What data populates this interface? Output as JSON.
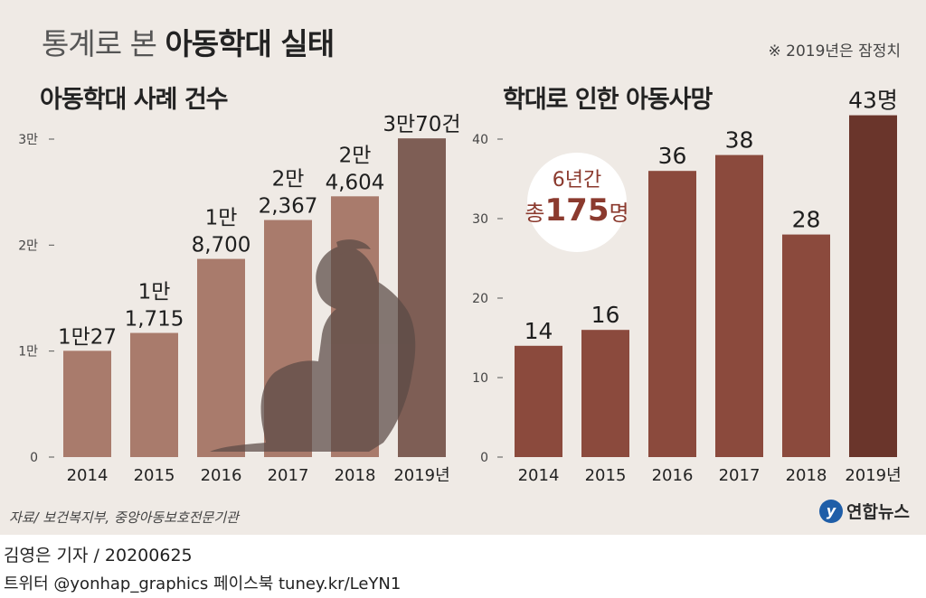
{
  "header": {
    "title_thin": "통계로 본",
    "title_bold": "아동학대 실태",
    "note": "※ 2019년은 잠정치"
  },
  "footer": {
    "source": "자료/ 보건복지부, 중앙아동보호전문기관",
    "logo": "연합뉴스",
    "credit_line1": "김영은 기자 / 20200625",
    "credit_line2": "트위터 @yonhap_graphics  페이스북 tuney.kr/LeYN1"
  },
  "callout": {
    "line1": "6년간",
    "line2_prefix": "총",
    "line2_number": "175",
    "line2_suffix": "명"
  },
  "colors": {
    "panel": "#efeae5",
    "left_bars": "#a97b6c",
    "left_last_bar": "#7e5e55",
    "right_bars": "#8b4a3d",
    "right_last_bar": "#6a352b",
    "silhouette": "#5a4a45"
  },
  "icons": [
    "child-silhouette-icon"
  ],
  "chart_data": [
    {
      "type": "bar",
      "title": "아동학대 사례 건수",
      "categories": [
        "2014",
        "2015",
        "2016",
        "2017",
        "2018",
        "2019년"
      ],
      "values": [
        10027,
        11715,
        18700,
        22367,
        24604,
        30070
      ],
      "data_labels": [
        [
          "1만27"
        ],
        [
          "1만",
          "1,715"
        ],
        [
          "1만",
          "8,700"
        ],
        [
          "2만",
          "2,367"
        ],
        [
          "2만",
          "4,604"
        ],
        [
          "3만70건"
        ]
      ],
      "yticks": [
        0,
        10000,
        20000,
        30000
      ],
      "ytick_labels": [
        "0",
        "1만",
        "2만",
        "3만"
      ],
      "ylim": [
        0,
        30000
      ],
      "grid": false
    },
    {
      "type": "bar",
      "title": "학대로 인한 아동사망",
      "categories": [
        "2014",
        "2015",
        "2016",
        "2017",
        "2018",
        "2019년"
      ],
      "values": [
        14,
        16,
        36,
        38,
        28,
        43
      ],
      "data_labels": [
        [
          "14"
        ],
        [
          "16"
        ],
        [
          "36"
        ],
        [
          "38"
        ],
        [
          "28"
        ],
        [
          "43명"
        ]
      ],
      "yticks": [
        0,
        10,
        20,
        30,
        40
      ],
      "ytick_labels": [
        "0",
        "10",
        "20",
        "30",
        "40"
      ],
      "ylim": [
        0,
        40
      ],
      "grid": false
    }
  ]
}
